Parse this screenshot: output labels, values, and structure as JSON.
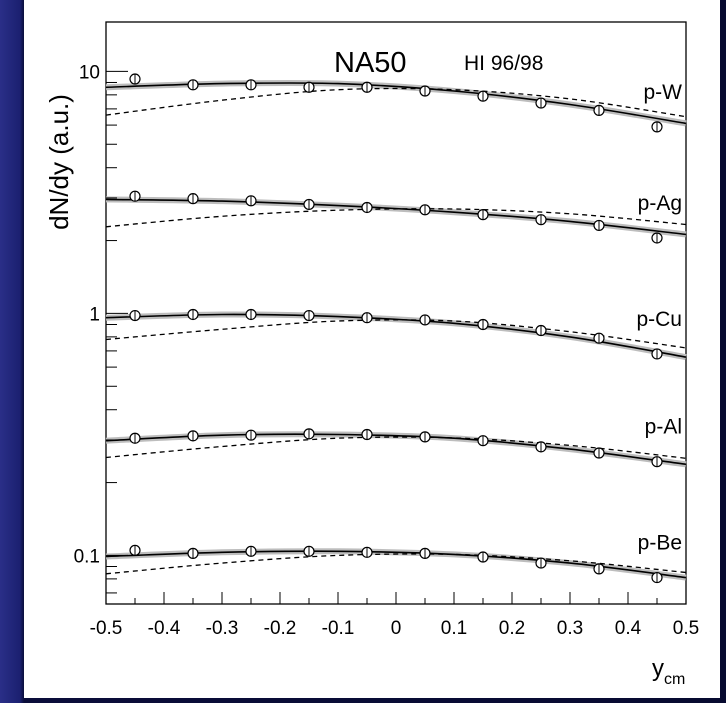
{
  "chart_data": {
    "type": "scatter",
    "title_main": "NA50",
    "title_sub": "HI 96/98",
    "xlabel_main": "y",
    "xlabel_sub": "cm",
    "ylabel": "dN/dy (a.u.)",
    "xlim": [
      -0.5,
      0.5
    ],
    "ylim": [
      0.063,
      16
    ],
    "yscale": "log",
    "grid": false,
    "x_ticks": [
      {
        "value": -0.5,
        "label": "-0.5"
      },
      {
        "value": -0.4,
        "label": "-0.4"
      },
      {
        "value": -0.3,
        "label": "-0.3"
      },
      {
        "value": -0.2,
        "label": "-0.2"
      },
      {
        "value": -0.1,
        "label": "-0.1"
      },
      {
        "value": 0,
        "label": "0"
      },
      {
        "value": 0.1,
        "label": "0.1"
      },
      {
        "value": 0.2,
        "label": "0.2"
      },
      {
        "value": 0.3,
        "label": "0.3"
      },
      {
        "value": 0.4,
        "label": "0.4"
      },
      {
        "value": 0.5,
        "label": "0.5"
      }
    ],
    "y_major_ticks": [
      {
        "value": 0.1,
        "label": "0.1"
      },
      {
        "value": 1,
        "label": "1"
      },
      {
        "value": 10,
        "label": "10"
      }
    ],
    "x": [
      -0.45,
      -0.35,
      -0.25,
      -0.15,
      -0.05,
      0.05,
      0.15,
      0.25,
      0.35,
      0.45
    ],
    "series": [
      {
        "name": "p-W",
        "values": [
          9.3,
          8.8,
          8.8,
          8.6,
          8.6,
          8.3,
          7.9,
          7.4,
          6.9,
          5.9
        ],
        "solid_fit": [
          [
            -0.5,
            8.6
          ],
          [
            -0.3,
            8.9
          ],
          [
            -0.1,
            8.9
          ],
          [
            0.1,
            8.3
          ],
          [
            0.3,
            7.3
          ],
          [
            0.5,
            6.1
          ]
        ],
        "dashed_fit": [
          [
            -0.5,
            6.6
          ],
          [
            -0.3,
            7.6
          ],
          [
            -0.1,
            8.4
          ],
          [
            0.1,
            8.4
          ],
          [
            0.3,
            7.7
          ],
          [
            0.5,
            6.5
          ]
        ]
      },
      {
        "name": "p-Ag",
        "values": [
          3.05,
          2.98,
          2.92,
          2.82,
          2.74,
          2.68,
          2.56,
          2.44,
          2.31,
          2.05
        ],
        "solid_fit": [
          [
            -0.5,
            2.96
          ],
          [
            -0.3,
            2.91
          ],
          [
            -0.1,
            2.79
          ],
          [
            0.1,
            2.62
          ],
          [
            0.3,
            2.4
          ],
          [
            0.5,
            2.12
          ]
        ],
        "dashed_fit": [
          [
            -0.5,
            2.28
          ],
          [
            -0.3,
            2.52
          ],
          [
            -0.1,
            2.67
          ],
          [
            0.1,
            2.7
          ],
          [
            0.3,
            2.58
          ],
          [
            0.5,
            2.33
          ]
        ]
      },
      {
        "name": "p-Cu",
        "values": [
          0.98,
          0.99,
          0.99,
          0.98,
          0.96,
          0.94,
          0.9,
          0.85,
          0.79,
          0.68
        ],
        "solid_fit": [
          [
            -0.5,
            0.96
          ],
          [
            -0.3,
            0.99
          ],
          [
            -0.1,
            0.97
          ],
          [
            0.1,
            0.91
          ],
          [
            0.3,
            0.8
          ],
          [
            0.5,
            0.66
          ]
        ],
        "dashed_fit": [
          [
            -0.5,
            0.78
          ],
          [
            -0.3,
            0.86
          ],
          [
            -0.1,
            0.93
          ],
          [
            0.1,
            0.93
          ],
          [
            0.3,
            0.84
          ],
          [
            0.5,
            0.72
          ]
        ]
      },
      {
        "name": "p-Al",
        "values": [
          0.305,
          0.312,
          0.314,
          0.318,
          0.316,
          0.309,
          0.298,
          0.281,
          0.265,
          0.244
        ],
        "solid_fit": [
          [
            -0.5,
            0.298
          ],
          [
            -0.3,
            0.314
          ],
          [
            -0.1,
            0.316
          ],
          [
            0.1,
            0.305
          ],
          [
            0.3,
            0.275
          ],
          [
            0.5,
            0.238
          ]
        ],
        "dashed_fit": [
          [
            -0.5,
            0.254
          ],
          [
            -0.3,
            0.282
          ],
          [
            -0.1,
            0.305
          ],
          [
            0.1,
            0.306
          ],
          [
            0.3,
            0.285
          ],
          [
            0.5,
            0.252
          ]
        ]
      },
      {
        "name": "p-Be",
        "values": [
          0.105,
          0.102,
          0.104,
          0.104,
          0.103,
          0.102,
          0.0985,
          0.093,
          0.088,
          0.081
        ],
        "solid_fit": [
          [
            -0.5,
            0.099
          ],
          [
            -0.3,
            0.103
          ],
          [
            -0.1,
            0.104
          ],
          [
            0.1,
            0.101
          ],
          [
            0.3,
            0.093
          ],
          [
            0.5,
            0.081
          ]
        ],
        "dashed_fit": [
          [
            -0.5,
            0.084
          ],
          [
            -0.3,
            0.093
          ],
          [
            -0.1,
            0.1
          ],
          [
            0.1,
            0.101
          ],
          [
            0.3,
            0.095
          ],
          [
            0.5,
            0.085
          ]
        ]
      }
    ]
  }
}
